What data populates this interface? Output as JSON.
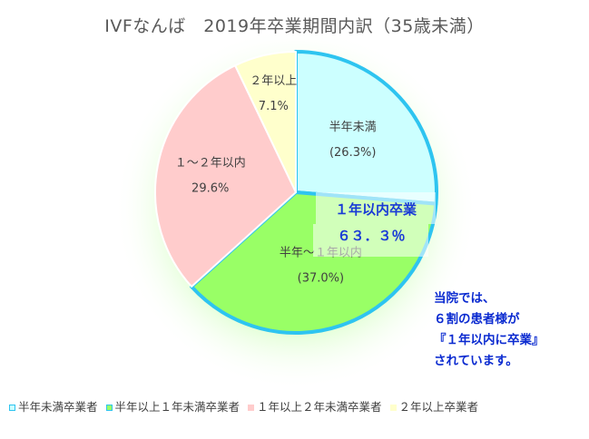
{
  "chart_data": {
    "type": "pie",
    "title": "IVFなんば　2019年卒業期間内訳（35歳未満）",
    "slices": [
      {
        "name": "半年未満卒業者",
        "label": "半年未満",
        "pct_label": "(26.3%)",
        "value": 26.3,
        "color": "#ccffff",
        "stroke": "#2ec4f0"
      },
      {
        "name": "半年以上１年未満卒業者",
        "label": "半年～１年以内",
        "pct_label": "(37.0%)",
        "value": 37.0,
        "color": "#99ff66",
        "stroke": "#2ec4f0"
      },
      {
        "name": "１年以上２年未満卒業者",
        "label": "１～２年以内",
        "pct_label": "29.6%",
        "value": 29.6,
        "color": "#ffcccc",
        "stroke": "#ffffff"
      },
      {
        "name": "２年以上卒業者",
        "label": "２年以上",
        "pct_label": "7.1%",
        "value": 7.1,
        "color": "#ffffcc",
        "stroke": "#ffffff"
      }
    ],
    "highlight": {
      "title": "１年以内卒業",
      "value": "６３．３％"
    },
    "legend_position": "bottom"
  },
  "callout": {
    "lines": [
      "当院では、",
      "６割の患者様が",
      "『１年以内に卒業』",
      "されています。"
    ]
  }
}
